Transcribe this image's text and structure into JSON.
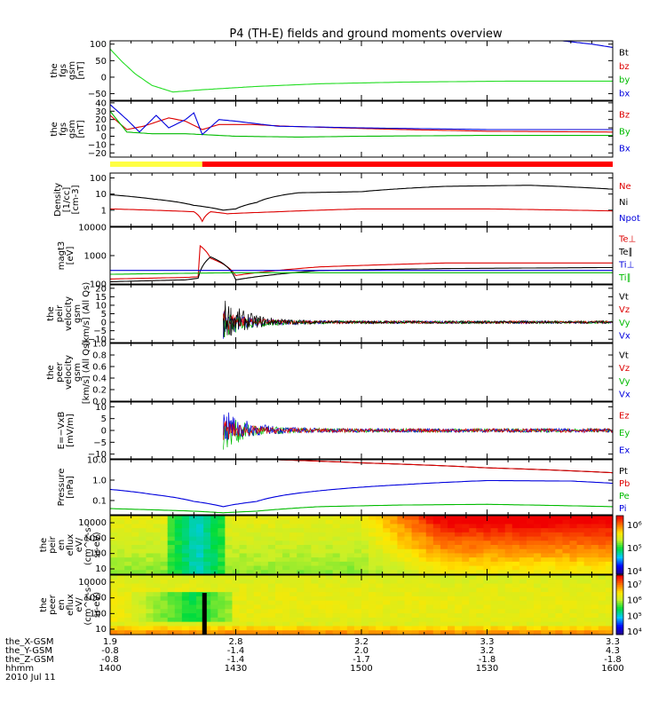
{
  "title": "P4 (TH-E) fields and ground moments overview",
  "chart_data": {
    "type": "line",
    "x_axis": {
      "range_hhmm": [
        "1400",
        "1600"
      ],
      "tick_hhmm": [
        "1400",
        "1430",
        "1500",
        "1530",
        "1600"
      ],
      "rows": [
        {
          "label": "the_X-GSM",
          "values": [
            "1.9",
            "2.8",
            "3.2",
            "3.3",
            "3.3"
          ]
        },
        {
          "label": "the_Y-GSM",
          "values": [
            "-0.8",
            "-1.4",
            "2.0",
            "3.2",
            "4.3"
          ]
        },
        {
          "label": "the_Z-GSM",
          "values": [
            "-0.8",
            "-1.4",
            "-1.7",
            "-1.8",
            "-1.8"
          ]
        },
        {
          "label": "hhmm",
          "values": [
            "1400",
            "1430",
            "1500",
            "1530",
            "1600"
          ]
        }
      ],
      "date": "2010 Jul 11"
    },
    "bar": {
      "segments": [
        {
          "from": "1400",
          "to": "1422",
          "color": "#ffff44"
        },
        {
          "from": "1422",
          "to": "1600",
          "color": "#ff0000"
        }
      ]
    },
    "panels": [
      {
        "id": "fgs",
        "ylabel": [
          "the",
          "fgs",
          "gsm",
          "[nT]"
        ],
        "ylim": [
          -70,
          110
        ],
        "yticks": [
          "100",
          "50",
          "0",
          "−50"
        ],
        "ytick_values": [
          100,
          50,
          0,
          -50
        ],
        "legend": [
          {
            "name": "Bt",
            "color": "#000000"
          },
          {
            "name": "bz",
            "color": "#dd0000"
          },
          {
            "name": "by",
            "color": "#00bb00"
          },
          {
            "name": "bx",
            "color": "#0000dd"
          }
        ],
        "series": [
          {
            "name": "by",
            "color": "#22dd22",
            "x": [
              0,
              3,
              6,
              10,
              15,
              22,
              35,
              50,
              70,
              95,
              120
            ],
            "y": [
              85,
              45,
              10,
              -25,
              -45,
              -38,
              -28,
              -20,
              -15,
              -12,
              -12
            ]
          },
          {
            "name": "bx",
            "color": "#0000dd",
            "x": [
              108,
              115,
              120
            ],
            "y": [
              110,
              100,
              90
            ]
          }
        ]
      },
      {
        "id": "fgs_dsl",
        "ylabel": [
          "the",
          "fgs",
          "gsm",
          "[nT]"
        ],
        "ylim": [
          -25,
          42
        ],
        "yticks": [
          "40",
          "30",
          "20",
          "10",
          "0",
          "−10",
          "−20"
        ],
        "ytick_values": [
          40,
          30,
          20,
          10,
          0,
          -10,
          -20
        ],
        "legend": [
          {
            "name": "Bz",
            "color": "#dd0000"
          },
          {
            "name": "By",
            "color": "#00bb00"
          },
          {
            "name": "Bx",
            "color": "#0000dd"
          }
        ],
        "series": [
          {
            "name": "Bz",
            "color": "#dd0000",
            "x": [
              0,
              4,
              8,
              14,
              18,
              22,
              26,
              34,
              42,
              55,
              70,
              90,
              120
            ],
            "y": [
              25,
              8,
              12,
              22,
              18,
              8,
              14,
              14,
              12,
              10,
              8,
              6,
              5
            ]
          },
          {
            "name": "By",
            "color": "#00bb00",
            "x": [
              0,
              4,
              10,
              18,
              22,
              30,
              45,
              60,
              90,
              120
            ],
            "y": [
              30,
              5,
              3,
              3,
              2,
              0,
              -1,
              0,
              1,
              1
            ]
          },
          {
            "name": "Bx",
            "color": "#0000dd",
            "x": [
              0,
              4,
              7,
              11,
              14,
              18,
              20,
              22,
              26,
              30,
              40,
              60,
              90,
              120
            ],
            "y": [
              38,
              20,
              5,
              25,
              10,
              20,
              28,
              2,
              20,
              18,
              12,
              10,
              8,
              8
            ]
          }
        ]
      },
      {
        "id": "density",
        "ylabel": [
          "Density",
          "[1/cc]",
          "[cm-3]"
        ],
        "log": true,
        "ylim": [
          0.1,
          200
        ],
        "yticks": [
          "100",
          "10",
          "1"
        ],
        "ytick_values": [
          100,
          10,
          1
        ],
        "legend": [
          {
            "name": "Ne",
            "color": "#dd0000"
          },
          {
            "name": "Ni",
            "color": "#000000"
          },
          {
            "name": "Npot",
            "color": "#0000dd"
          }
        ],
        "series": [
          {
            "name": "Ni",
            "color": "#000000",
            "x": [
              0,
              10,
              20,
              27,
              30,
              35,
              45,
              60,
              80,
              100,
              120
            ],
            "y": [
              9,
              5,
              2,
              1,
              1.2,
              3,
              12,
              14,
              30,
              35,
              20
            ]
          },
          {
            "name": "Ne",
            "color": "#dd0000",
            "x": [
              0,
              10,
              20,
              22,
              24,
              28,
              40,
              60,
              90,
              120
            ],
            "y": [
              1.2,
              1,
              0.8,
              0.2,
              0.8,
              0.6,
              0.8,
              1.2,
              1.2,
              0.9
            ]
          }
        ]
      },
      {
        "id": "temperature",
        "ylabel": [
          "magt3",
          "[eV]"
        ],
        "log": true,
        "ylim": [
          100,
          10000
        ],
        "yticks": [
          "10000",
          "1000",
          "100"
        ],
        "ytick_values": [
          10000,
          1000,
          100
        ],
        "legend": [
          {
            "name": "Te⊥",
            "color": "#dd0000"
          },
          {
            "name": "Te∥",
            "color": "#000000"
          },
          {
            "name": "Ti⊥",
            "color": "#0000dd"
          },
          {
            "name": "Ti∥",
            "color": "#00bb00"
          }
        ],
        "series": [
          {
            "name": "Te⊥",
            "color": "#dd0000",
            "x": [
              0,
              18,
              21,
              21.5,
              24,
              30,
              50,
              80,
              120
            ],
            "y": [
              150,
              170,
              180,
              2200,
              800,
              200,
              400,
              550,
              550
            ]
          },
          {
            "name": "Te∥",
            "color": "#000000",
            "x": [
              0,
              18,
              21,
              24,
              30,
              50,
              80,
              120
            ],
            "y": [
              120,
              140,
              160,
              900,
              140,
              300,
              350,
              380
            ]
          },
          {
            "name": "Ti⊥",
            "color": "#0000dd",
            "x": [
              0,
              30,
              60,
              120
            ],
            "y": [
              300,
              300,
              300,
              300
            ]
          },
          {
            "name": "Ti∥",
            "color": "#00bb00",
            "x": [
              0,
              30,
              60,
              120
            ],
            "y": [
              220,
              250,
              250,
              250
            ]
          }
        ]
      },
      {
        "id": "peir_velocity",
        "ylabel": [
          "the",
          "peir",
          "velocity",
          "gsm",
          "[km/s] (All Qs)"
        ],
        "ylim": [
          -12,
          22
        ],
        "yticks": [
          "20",
          "15",
          "10",
          "5",
          "0",
          "−5",
          "−10"
        ],
        "ytick_values": [
          20,
          15,
          10,
          5,
          0,
          -5,
          -10
        ],
        "legend": [
          {
            "name": "Vt",
            "color": "#000000"
          },
          {
            "name": "Vz",
            "color": "#dd0000"
          },
          {
            "name": "Vy",
            "color": "#00bb00"
          },
          {
            "name": "Vx",
            "color": "#0000dd"
          }
        ],
        "noise_start": 27,
        "series": [
          {
            "name": "Vx",
            "color": "#0000dd",
            "base": -1,
            "amp0": 8
          },
          {
            "name": "Vy",
            "color": "#00bb00",
            "base": -2,
            "amp0": 7
          },
          {
            "name": "Vz",
            "color": "#dd0000",
            "base": 1,
            "amp0": 6
          },
          {
            "name": "Vt",
            "color": "#000000",
            "base": 2,
            "amp0": 12
          }
        ]
      },
      {
        "id": "peer_velocity",
        "ylabel": [
          "the",
          "peer",
          "velocity",
          "gsm",
          "[km/s] (All Qs)"
        ],
        "ylim": [
          0,
          1
        ],
        "yticks": [
          "1.0",
          "0.8",
          "0.6",
          "0.4",
          "0.2",
          "0.0"
        ],
        "ytick_values": [
          1,
          0.8,
          0.6,
          0.4,
          0.2,
          0
        ],
        "legend": [
          {
            "name": "Vt",
            "color": "#000000"
          },
          {
            "name": "Vz",
            "color": "#dd0000"
          },
          {
            "name": "Vy",
            "color": "#00bb00"
          },
          {
            "name": "Vx",
            "color": "#0000dd"
          }
        ],
        "series": []
      },
      {
        "id": "efield",
        "ylabel": [
          "E=−VxB",
          "[mV/m]"
        ],
        "ylim": [
          -12,
          12
        ],
        "yticks": [
          "10",
          "5",
          "0",
          "−5",
          "−10"
        ],
        "ytick_values": [
          10,
          5,
          0,
          -5,
          -10
        ],
        "legend": [
          {
            "name": "Ez",
            "color": "#dd0000"
          },
          {
            "name": "Ey",
            "color": "#00bb00"
          },
          {
            "name": "Ex",
            "color": "#0000dd"
          }
        ],
        "noise_start": 27,
        "series": [
          {
            "name": "Ey",
            "color": "#00bb00",
            "base": -1,
            "amp0": 7
          },
          {
            "name": "Ex",
            "color": "#0000dd",
            "base": 1.5,
            "amp0": 7
          },
          {
            "name": "Ez",
            "color": "#dd0000",
            "base": 0,
            "amp0": 4
          }
        ]
      },
      {
        "id": "pressure",
        "ylabel": [
          "Pressure",
          "[nPa]"
        ],
        "log": true,
        "ylim": [
          0.02,
          10
        ],
        "yticks": [
          "10.0",
          "1.0",
          "0.1"
        ],
        "ytick_values": [
          10,
          1,
          0.1
        ],
        "legend": [
          {
            "name": "Pt",
            "color": "#000000"
          },
          {
            "name": "Pb",
            "color": "#dd0000"
          },
          {
            "name": "Pe",
            "color": "#00bb00"
          },
          {
            "name": "Pi",
            "color": "#0000dd"
          }
        ],
        "series": [
          {
            "name": "Pt",
            "color": "#000000",
            "x": [
              40,
              60,
              90,
              120
            ],
            "y": [
              10,
              7,
              4,
              2.3
            ]
          },
          {
            "name": "Pb",
            "color": "#dd0000",
            "x": [
              40,
              60,
              90,
              120
            ],
            "y": [
              10,
              7,
              4,
              2.3
            ]
          },
          {
            "name": "Pi",
            "color": "#0000dd",
            "x": [
              0,
              10,
              20,
              27,
              35,
              50,
              70,
              90,
              110,
              120
            ],
            "y": [
              0.35,
              0.2,
              0.09,
              0.05,
              0.09,
              0.3,
              0.6,
              0.95,
              0.9,
              0.7
            ]
          },
          {
            "name": "Pe",
            "color": "#00bb00",
            "x": [
              0,
              10,
              20,
              27,
              35,
              50,
              70,
              90,
              120
            ],
            "y": [
              0.04,
              0.035,
              0.03,
              0.025,
              0.03,
              0.05,
              0.06,
              0.065,
              0.05
            ]
          }
        ]
      },
      {
        "id": "peir_eflux",
        "type": "heatmap",
        "ylabel": [
          "the",
          "peir",
          "en",
          "eflux",
          "eV/",
          "(cm^2-s-",
          "sr-eV)"
        ],
        "yticks": [
          "10000",
          "1000",
          "100",
          "10"
        ],
        "colorbar_ticks": [
          "10⁶",
          "10⁵",
          "10⁴"
        ]
      },
      {
        "id": "peer_eflux",
        "type": "heatmap",
        "ylabel": [
          "the",
          "peer",
          "en",
          "eflux",
          "eV/",
          "(cm^2-s-",
          "sr-eV)"
        ],
        "yticks": [
          "10000",
          "1000",
          "100",
          "10"
        ],
        "colorbar_ticks": [
          "10⁷",
          "10⁶",
          "10⁵",
          "10⁴"
        ]
      }
    ]
  }
}
